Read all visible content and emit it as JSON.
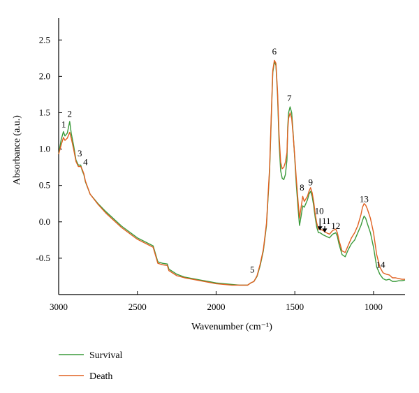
{
  "chart_data": {
    "type": "line",
    "xlabel": "Wavenumber (cm⁻¹)",
    "ylabel": "Absorbance (a.u.)",
    "xlim": [
      3000,
      800
    ],
    "ylim": [
      -1.0,
      2.8
    ],
    "x_reversed": true,
    "x_ticks": [
      3000,
      2500,
      2000,
      1500,
      1000
    ],
    "x_tick_labels": [
      "3000",
      "2500",
      "2000",
      "1500",
      "1000"
    ],
    "y_ticks": [
      -0.5,
      0.0,
      0.5,
      1.0,
      1.5,
      2.0,
      2.5
    ],
    "y_tick_labels": [
      "-0.5",
      "0.0",
      "0.5",
      "1.0",
      "1.5",
      "2.0",
      "2.5"
    ],
    "grid": false,
    "legend_position": "bottom-left",
    "series": [
      {
        "name": "Survival",
        "color": "#3a9a3a",
        "x": [
          3000,
          2985,
          2970,
          2960,
          2945,
          2930,
          2920,
          2905,
          2890,
          2875,
          2860,
          2850,
          2840,
          2830,
          2800,
          2750,
          2700,
          2600,
          2500,
          2400,
          2370,
          2340,
          2310,
          2300,
          2250,
          2200,
          2150,
          2100,
          2050,
          2000,
          1950,
          1900,
          1850,
          1800,
          1780,
          1760,
          1740,
          1720,
          1700,
          1680,
          1660,
          1650,
          1640,
          1630,
          1620,
          1610,
          1600,
          1590,
          1580,
          1570,
          1560,
          1550,
          1545,
          1540,
          1530,
          1520,
          1510,
          1500,
          1490,
          1480,
          1470,
          1460,
          1450,
          1440,
          1420,
          1410,
          1400,
          1390,
          1380,
          1370,
          1360,
          1350,
          1340,
          1320,
          1300,
          1280,
          1260,
          1240,
          1230,
          1220,
          1200,
          1180,
          1160,
          1140,
          1120,
          1100,
          1080,
          1070,
          1060,
          1050,
          1040,
          1020,
          1000,
          980,
          960,
          940,
          920,
          900,
          880,
          860,
          840,
          820,
          800
        ],
        "y": [
          0.93,
          1.12,
          1.24,
          1.18,
          1.22,
          1.38,
          1.22,
          1.05,
          0.85,
          0.78,
          0.78,
          0.7,
          0.65,
          0.55,
          0.38,
          0.25,
          0.14,
          -0.06,
          -0.22,
          -0.33,
          -0.55,
          -0.57,
          -0.58,
          -0.65,
          -0.72,
          -0.76,
          -0.78,
          -0.8,
          -0.82,
          -0.84,
          -0.85,
          -0.86,
          -0.87,
          -0.87,
          -0.84,
          -0.82,
          -0.75,
          -0.6,
          -0.4,
          -0.05,
          0.7,
          1.4,
          2.05,
          2.2,
          2.15,
          1.75,
          1.1,
          0.7,
          0.6,
          0.58,
          0.65,
          0.85,
          1.3,
          1.5,
          1.58,
          1.5,
          1.2,
          0.85,
          0.5,
          0.2,
          -0.05,
          0.08,
          0.22,
          0.2,
          0.3,
          0.38,
          0.42,
          0.35,
          0.22,
          0.05,
          -0.08,
          -0.15,
          -0.15,
          -0.18,
          -0.2,
          -0.22,
          -0.17,
          -0.15,
          -0.2,
          -0.3,
          -0.45,
          -0.48,
          -0.38,
          -0.3,
          -0.25,
          -0.15,
          -0.05,
          0.02,
          0.08,
          0.05,
          -0.02,
          -0.15,
          -0.35,
          -0.62,
          -0.72,
          -0.78,
          -0.8,
          -0.79,
          -0.82,
          -0.82,
          -0.81,
          -0.81,
          -0.8
        ]
      },
      {
        "name": "Death",
        "color": "#e06020",
        "x": [
          3000,
          2985,
          2970,
          2960,
          2945,
          2930,
          2920,
          2905,
          2890,
          2875,
          2860,
          2850,
          2840,
          2830,
          2800,
          2750,
          2700,
          2600,
          2500,
          2400,
          2370,
          2340,
          2310,
          2300,
          2250,
          2200,
          2150,
          2100,
          2050,
          2000,
          1950,
          1900,
          1850,
          1800,
          1780,
          1760,
          1740,
          1720,
          1700,
          1680,
          1660,
          1650,
          1640,
          1630,
          1620,
          1610,
          1600,
          1590,
          1580,
          1570,
          1560,
          1550,
          1545,
          1540,
          1530,
          1520,
          1510,
          1500,
          1490,
          1480,
          1470,
          1460,
          1450,
          1440,
          1420,
          1410,
          1400,
          1390,
          1380,
          1370,
          1360,
          1350,
          1340,
          1320,
          1300,
          1280,
          1260,
          1240,
          1230,
          1220,
          1200,
          1180,
          1160,
          1140,
          1120,
          1100,
          1080,
          1070,
          1060,
          1050,
          1040,
          1020,
          1000,
          980,
          960,
          940,
          920,
          900,
          880,
          860,
          840,
          820,
          800
        ],
        "y": [
          0.93,
          1.05,
          1.16,
          1.12,
          1.15,
          1.23,
          1.15,
          1.0,
          0.83,
          0.76,
          0.76,
          0.72,
          0.66,
          0.56,
          0.38,
          0.24,
          0.12,
          -0.08,
          -0.24,
          -0.35,
          -0.57,
          -0.59,
          -0.6,
          -0.67,
          -0.74,
          -0.77,
          -0.79,
          -0.81,
          -0.83,
          -0.85,
          -0.86,
          -0.87,
          -0.87,
          -0.87,
          -0.84,
          -0.82,
          -0.74,
          -0.58,
          -0.38,
          -0.02,
          0.75,
          1.45,
          2.08,
          2.22,
          2.18,
          1.8,
          1.2,
          0.82,
          0.73,
          0.75,
          0.82,
          0.95,
          1.25,
          1.42,
          1.5,
          1.42,
          1.18,
          0.88,
          0.58,
          0.3,
          0.05,
          0.2,
          0.35,
          0.28,
          0.35,
          0.42,
          0.47,
          0.4,
          0.28,
          0.1,
          -0.02,
          -0.1,
          -0.1,
          -0.12,
          -0.15,
          -0.17,
          -0.12,
          -0.1,
          -0.15,
          -0.25,
          -0.4,
          -0.42,
          -0.32,
          -0.22,
          -0.15,
          -0.05,
          0.1,
          0.2,
          0.25,
          0.23,
          0.18,
          0.05,
          -0.15,
          -0.45,
          -0.62,
          -0.7,
          -0.72,
          -0.73,
          -0.77,
          -0.77,
          -0.78,
          -0.79,
          -0.79
        ]
      }
    ],
    "annotations": [
      {
        "text": "1",
        "x": 2968,
        "y": 1.3
      },
      {
        "text": "2",
        "x": 2930,
        "y": 1.44
      },
      {
        "text": "3",
        "x": 2866,
        "y": 0.9
      },
      {
        "text": "4",
        "x": 2830,
        "y": 0.78
      },
      {
        "text": "5",
        "x": 1770,
        "y": -0.7
      },
      {
        "text": "6",
        "x": 1630,
        "y": 2.3
      },
      {
        "text": "7",
        "x": 1535,
        "y": 1.66
      },
      {
        "text": "8",
        "x": 1455,
        "y": 0.43
      },
      {
        "text": "9",
        "x": 1400,
        "y": 0.5
      },
      {
        "text": "10",
        "x": 1345,
        "y": 0.11
      },
      {
        "text": "11",
        "x": 1300,
        "y": -0.03
      },
      {
        "text": "12",
        "x": 1240,
        "y": -0.1
      },
      {
        "text": "13",
        "x": 1060,
        "y": 0.27
      },
      {
        "text": "14",
        "x": 955,
        "y": -0.63
      }
    ],
    "arrows": [
      {
        "from": [
          1340,
          0.05
        ],
        "to": [
          1340,
          -0.12
        ]
      },
      {
        "from": [
          1310,
          -0.06
        ],
        "to": [
          1310,
          -0.15
        ]
      }
    ]
  }
}
